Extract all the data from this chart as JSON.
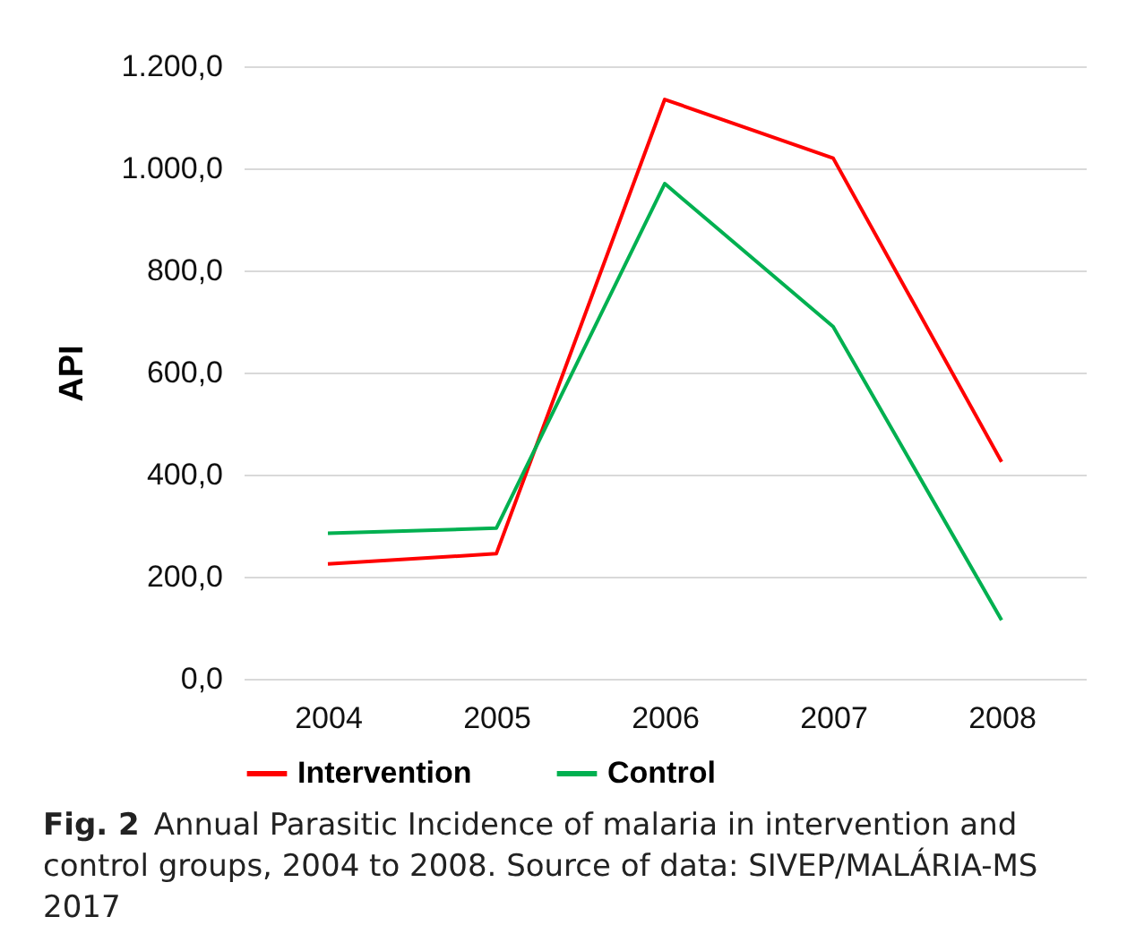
{
  "chart_data": {
    "type": "line",
    "ylabel": "API",
    "categories": [
      "2004",
      "2005",
      "2006",
      "2007",
      "2008"
    ],
    "series": [
      {
        "name": "Intervention",
        "color": "#ff0000",
        "values": [
          225,
          245,
          1135,
          1020,
          425
        ]
      },
      {
        "name": "Control",
        "color": "#00b050",
        "values": [
          285,
          295,
          970,
          690,
          115
        ]
      }
    ],
    "ylim": [
      0,
      1200
    ],
    "yticks": [
      {
        "value": 0,
        "label": "0,0"
      },
      {
        "value": 200,
        "label": "200,0"
      },
      {
        "value": 400,
        "label": "400,0"
      },
      {
        "value": 600,
        "label": "600,0"
      },
      {
        "value": 800,
        "label": "800,0"
      },
      {
        "value": 1000,
        "label": "1.000,0"
      },
      {
        "value": 1200,
        "label": "1.200,0"
      }
    ],
    "grid": "y",
    "legend": "bottom",
    "annotations": [
      "Fig. 2",
      "Annual Parasitic Incidence of malaria in intervention and control groups, 2004 to 2008. Source of data: SIVEP/MALÁRIA-MS 2017"
    ]
  }
}
